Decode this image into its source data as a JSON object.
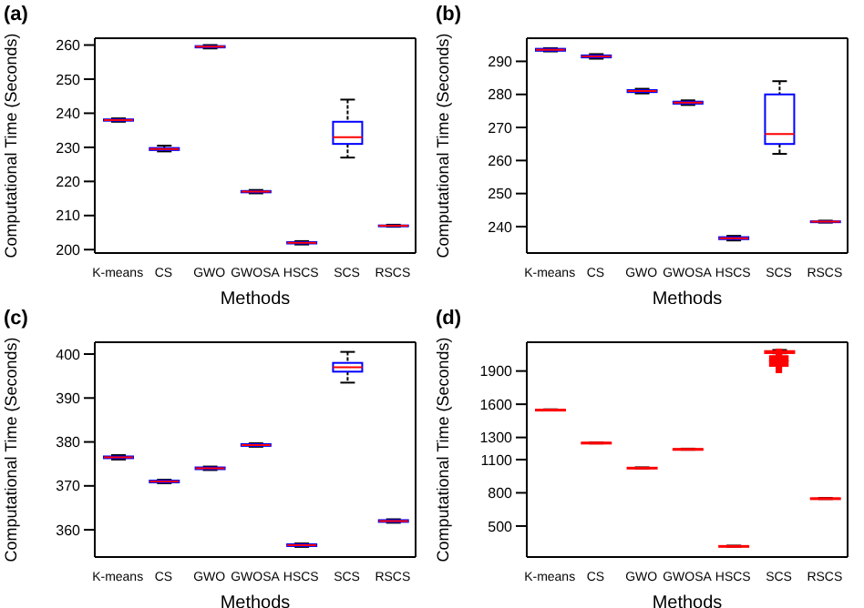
{
  "chart_data": [
    {
      "type": "box",
      "title": "(a)",
      "xlabel": "Methods",
      "ylabel": "Computational Time (Seconds)",
      "categories": [
        "K-means",
        "CS",
        "GWO",
        "GWOSA",
        "HSCS",
        "SCS",
        "RSCS"
      ],
      "ylim": [
        199,
        262
      ],
      "yticks": [
        200,
        210,
        220,
        230,
        240,
        250,
        260
      ],
      "series": [
        {
          "color": "#0000ff",
          "boxes": [
            {
              "low": 237.5,
              "q1": 237.8,
              "median": 238,
              "q3": 238.2,
              "high": 238.5
            },
            {
              "low": 228.8,
              "q1": 229.2,
              "median": 229.5,
              "q3": 229.8,
              "high": 230.5
            },
            {
              "low": 259,
              "q1": 259.3,
              "median": 259.5,
              "q3": 259.7,
              "high": 260
            },
            {
              "low": 216.5,
              "q1": 216.8,
              "median": 217,
              "q3": 217.2,
              "high": 217.5
            },
            {
              "low": 201.5,
              "q1": 201.8,
              "median": 202,
              "q3": 202.2,
              "high": 202.5
            },
            {
              "low": 227,
              "q1": 231,
              "median": 233,
              "q3": 237.5,
              "high": 244
            },
            {
              "low": 206.7,
              "q1": 206.9,
              "median": 207,
              "q3": 207.1,
              "high": 207.3
            }
          ]
        }
      ]
    },
    {
      "type": "box",
      "title": "(b)",
      "xlabel": "Methods",
      "ylabel": "Computational Time (Seconds)",
      "categories": [
        "K-means",
        "CS",
        "GWO",
        "GWOSA",
        "HSCS",
        "SCS",
        "RSCS"
      ],
      "ylim": [
        232,
        297
      ],
      "yticks": [
        240,
        250,
        260,
        270,
        280,
        290
      ],
      "series": [
        {
          "color": "#0000ff",
          "boxes": [
            {
              "low": 293,
              "q1": 293.2,
              "median": 293.5,
              "q3": 293.8,
              "high": 294
            },
            {
              "low": 290.8,
              "q1": 291.2,
              "median": 291.5,
              "q3": 291.8,
              "high": 292.2
            },
            {
              "low": 280.3,
              "q1": 280.7,
              "median": 281,
              "q3": 281.3,
              "high": 281.7
            },
            {
              "low": 276.8,
              "q1": 277.2,
              "median": 277.5,
              "q3": 277.8,
              "high": 278.2
            },
            {
              "low": 235.8,
              "q1": 236.2,
              "median": 236.5,
              "q3": 236.8,
              "high": 237.2
            },
            {
              "low": 262,
              "q1": 265,
              "median": 268,
              "q3": 280,
              "high": 284
            },
            {
              "low": 241.2,
              "q1": 241.4,
              "median": 241.5,
              "q3": 241.6,
              "high": 241.8
            }
          ]
        }
      ]
    },
    {
      "type": "box",
      "title": "(c)",
      "xlabel": "Methods",
      "ylabel": "Computational Time (Seconds)",
      "categories": [
        "K-means",
        "CS",
        "GWO",
        "GWOSA",
        "HSCS",
        "SCS",
        "RSCS"
      ],
      "ylim": [
        353.8,
        402.7
      ],
      "yticks": [
        360,
        370,
        380,
        390,
        400
      ],
      "series": [
        {
          "color": "#0000ff",
          "boxes": [
            {
              "low": 376,
              "q1": 376.3,
              "median": 376.5,
              "q3": 376.7,
              "high": 377
            },
            {
              "low": 370.6,
              "q1": 370.8,
              "median": 371,
              "q3": 371.2,
              "high": 371.4
            },
            {
              "low": 373.6,
              "q1": 373.8,
              "median": 374,
              "q3": 374.2,
              "high": 374.4
            },
            {
              "low": 378.9,
              "q1": 379.1,
              "median": 379.3,
              "q3": 379.5,
              "high": 379.7
            },
            {
              "low": 356.1,
              "q1": 356.3,
              "median": 356.5,
              "q3": 356.7,
              "high": 356.9
            },
            {
              "low": 393.5,
              "q1": 396,
              "median": 397,
              "q3": 398,
              "high": 400.5
            },
            {
              "low": 361.6,
              "q1": 361.8,
              "median": 362,
              "q3": 362.2,
              "high": 362.4
            }
          ]
        }
      ]
    },
    {
      "type": "box",
      "title": "(d)",
      "xlabel": "Methods",
      "ylabel": "Computational Time (Seconds)",
      "categories": [
        "K-means",
        "CS",
        "GWO",
        "GWOSA",
        "HSCS",
        "SCS",
        "RSCS"
      ],
      "ylim": [
        220,
        2160
      ],
      "yticks": [
        500,
        800,
        1100,
        1300,
        1600,
        1900
      ],
      "series": [
        {
          "color": "#ff0000",
          "boxes": [
            {
              "low": 1544,
              "q1": 1547,
              "median": 1549,
              "q3": 1551,
              "high": 1554
            },
            {
              "low": 1246,
              "q1": 1249,
              "median": 1251,
              "q3": 1253,
              "high": 1256
            },
            {
              "low": 1020,
              "q1": 1023,
              "median": 1025,
              "q3": 1027,
              "high": 1030
            },
            {
              "low": 1189,
              "q1": 1192,
              "median": 1194,
              "q3": 1196,
              "high": 1199
            },
            {
              "low": 313,
              "q1": 316,
              "median": 318,
              "q3": 320,
              "high": 323
            },
            {
              "low": 2060,
              "q1": 2062,
              "median": 2071,
              "q3": 2080,
              "high": 2090,
              "outliers": [
                2014,
                1968
              ]
            },
            {
              "low": 744,
              "q1": 747,
              "median": 749,
              "q3": 751,
              "high": 754
            }
          ]
        }
      ]
    }
  ]
}
